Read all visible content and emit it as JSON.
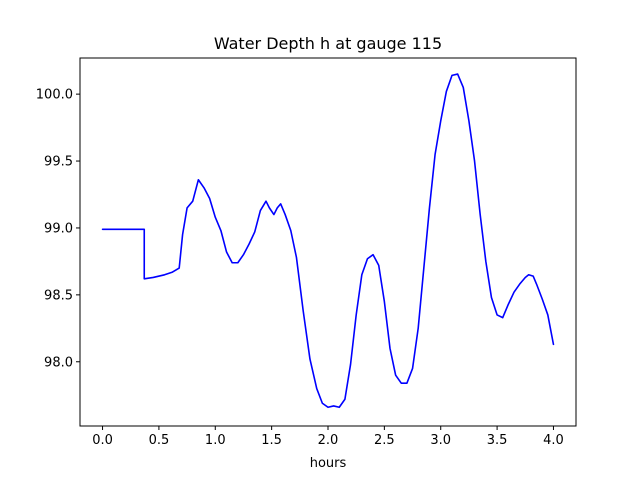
{
  "chart_data": {
    "type": "line",
    "title": "Water Depth h at gauge 115",
    "xlabel": "hours",
    "ylabel": "",
    "xlim": [
      -0.2,
      4.2
    ],
    "ylim": [
      97.52,
      100.27
    ],
    "xticks": [
      0.0,
      0.5,
      1.0,
      1.5,
      2.0,
      2.5,
      3.0,
      3.5,
      4.0
    ],
    "xtick_labels": [
      "0.0",
      "0.5",
      "1.0",
      "1.5",
      "2.0",
      "2.5",
      "3.0",
      "3.5",
      "4.0"
    ],
    "yticks": [
      98.0,
      98.5,
      99.0,
      99.5,
      100.0
    ],
    "ytick_labels": [
      "98.0",
      "98.5",
      "99.0",
      "99.5",
      "100.0"
    ],
    "grid": false,
    "series": [
      {
        "color": "#0000ff",
        "x": [
          0.0,
          0.37,
          0.37,
          0.45,
          0.55,
          0.62,
          0.68,
          0.71,
          0.75,
          0.8,
          0.85,
          0.9,
          0.95,
          1.0,
          1.05,
          1.1,
          1.15,
          1.2,
          1.25,
          1.3,
          1.35,
          1.4,
          1.45,
          1.48,
          1.52,
          1.55,
          1.58,
          1.62,
          1.67,
          1.72,
          1.78,
          1.84,
          1.9,
          1.95,
          2.0,
          2.05,
          2.1,
          2.15,
          2.2,
          2.25,
          2.3,
          2.35,
          2.4,
          2.45,
          2.5,
          2.55,
          2.6,
          2.65,
          2.7,
          2.75,
          2.8,
          2.85,
          2.9,
          2.95,
          3.0,
          3.05,
          3.1,
          3.15,
          3.2,
          3.25,
          3.3,
          3.35,
          3.4,
          3.45,
          3.5,
          3.55,
          3.6,
          3.65,
          3.7,
          3.75,
          3.78,
          3.82,
          3.85,
          3.9,
          3.95,
          4.0
        ],
        "values": [
          98.99,
          98.99,
          98.62,
          98.63,
          98.65,
          98.67,
          98.7,
          98.95,
          99.15,
          99.2,
          99.36,
          99.3,
          99.22,
          99.08,
          98.98,
          98.82,
          98.74,
          98.74,
          98.8,
          98.88,
          98.97,
          99.13,
          99.2,
          99.15,
          99.1,
          99.15,
          99.18,
          99.1,
          98.98,
          98.78,
          98.38,
          98.02,
          97.8,
          97.69,
          97.66,
          97.67,
          97.66,
          97.72,
          97.98,
          98.35,
          98.65,
          98.77,
          98.8,
          98.72,
          98.45,
          98.1,
          97.9,
          97.84,
          97.84,
          97.95,
          98.25,
          98.7,
          99.15,
          99.55,
          99.8,
          100.02,
          100.14,
          100.15,
          100.05,
          99.8,
          99.5,
          99.1,
          98.75,
          98.48,
          98.35,
          98.33,
          98.43,
          98.52,
          98.58,
          98.63,
          98.65,
          98.64,
          98.58,
          98.47,
          98.35,
          98.13
        ]
      }
    ]
  }
}
